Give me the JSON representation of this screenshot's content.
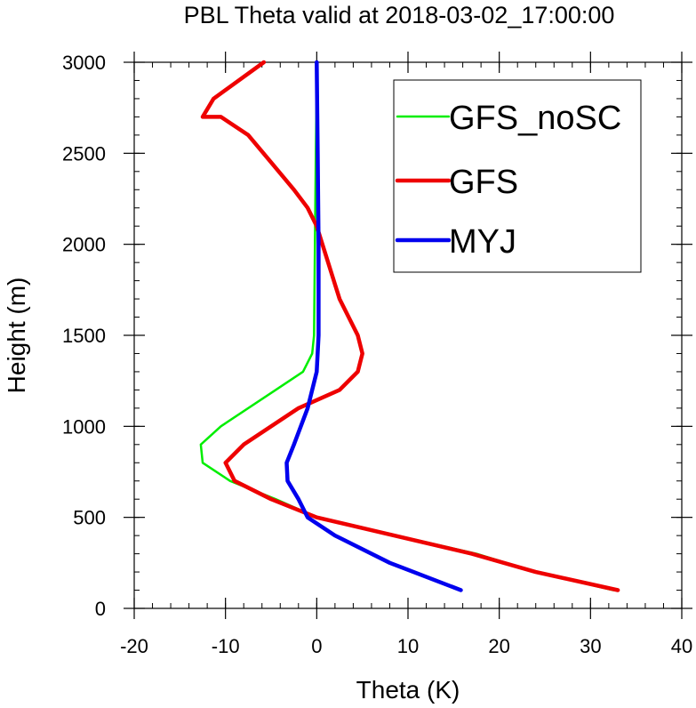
{
  "chart_data": {
    "type": "line",
    "title": "PBL Theta valid at 2018-03-02_17:00:00",
    "xlabel": "Theta (K)",
    "ylabel": "Height (m)",
    "xlim": [
      -20,
      40
    ],
    "ylim": [
      0,
      3000
    ],
    "xticks": [
      "-20",
      "-10",
      "0",
      "10",
      "20",
      "30",
      "40"
    ],
    "yticks": [
      "0",
      "500",
      "1000",
      "1500",
      "2000",
      "2500",
      "3000"
    ],
    "grid": false,
    "legend_position": "top-right",
    "series": [
      {
        "name": "GFS_noSC",
        "color": "#00ee00",
        "x": [
          32.5,
          24,
          17.5,
          0,
          -4.5,
          -9.5,
          -12.5,
          -12.7,
          -10.5,
          -4.5,
          -1.5,
          -0.5,
          -0.3,
          -0.2,
          -0.1,
          0,
          0
        ],
        "y": [
          100,
          200,
          300,
          500,
          600,
          700,
          800,
          900,
          1000,
          1200,
          1300,
          1400,
          1500,
          2000,
          2500,
          2900,
          3000
        ]
      },
      {
        "name": "GFS",
        "color": "#ee0000",
        "x": [
          33,
          24,
          17,
          0,
          -5,
          -9,
          -10,
          -8,
          -2,
          2.5,
          4.5,
          5,
          4.5,
          2.5,
          0,
          -1,
          -2.5,
          -5,
          -7.5,
          -10.5,
          -12.5,
          -11.3,
          -5.8
        ],
        "y": [
          100,
          200,
          300,
          500,
          600,
          700,
          800,
          900,
          1100,
          1200,
          1300,
          1400,
          1500,
          1700,
          2100,
          2200,
          2300,
          2450,
          2600,
          2700,
          2700,
          2800,
          3000
        ]
      },
      {
        "name": "MYJ",
        "color": "#0000ee",
        "x": [
          15.8,
          8,
          2,
          -1,
          -2,
          -3.2,
          -3.3,
          -2.5,
          -1,
          0,
          0.2,
          0.2,
          0.1,
          0
        ],
        "y": [
          100,
          250,
          400,
          500,
          600,
          700,
          800,
          900,
          1100,
          1300,
          1500,
          2000,
          2500,
          3000
        ]
      }
    ]
  }
}
